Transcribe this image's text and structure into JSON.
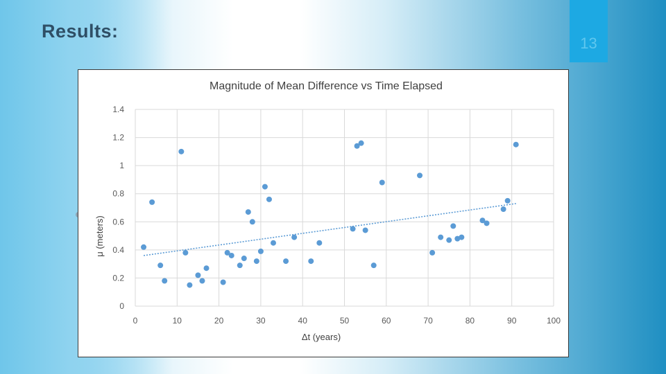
{
  "slide": {
    "title": "Results:",
    "page_number": "13"
  },
  "colors": {
    "marker": "#5b9bd5",
    "trendline": "#5b9bd5",
    "gridline": "#d9d9d9",
    "text": "#595959",
    "tab": "#1da9e3"
  },
  "chart_data": {
    "type": "scatter",
    "title": "Magnitude of Mean Difference vs Time Elapsed",
    "xlabel": "Δt (years)",
    "ylabel": "μ (meters)",
    "xlim": [
      0,
      100
    ],
    "ylim": [
      0,
      1.4
    ],
    "x_ticks": [
      0,
      10,
      20,
      30,
      40,
      50,
      60,
      70,
      80,
      90,
      100
    ],
    "y_ticks": [
      0,
      0.2,
      0.4,
      0.6,
      0.8,
      1,
      1.2,
      1.4
    ],
    "y_tick_labels": [
      "0",
      "0.2",
      "0.4",
      "0.6",
      "0.8",
      "1",
      "1.2",
      "1.4"
    ],
    "grid": true,
    "series": [
      {
        "name": "μ",
        "points": [
          [
            2,
            0.42
          ],
          [
            4,
            0.74
          ],
          [
            6,
            0.29
          ],
          [
            7,
            0.18
          ],
          [
            11,
            1.1
          ],
          [
            12,
            0.38
          ],
          [
            13,
            0.15
          ],
          [
            15,
            0.22
          ],
          [
            16,
            0.18
          ],
          [
            17,
            0.27
          ],
          [
            21,
            0.17
          ],
          [
            22,
            0.38
          ],
          [
            23,
            0.36
          ],
          [
            25,
            0.29
          ],
          [
            26,
            0.34
          ],
          [
            27,
            0.67
          ],
          [
            28,
            0.6
          ],
          [
            29,
            0.32
          ],
          [
            30,
            0.39
          ],
          [
            31,
            0.85
          ],
          [
            32,
            0.76
          ],
          [
            33,
            0.45
          ],
          [
            36,
            0.32
          ],
          [
            38,
            0.49
          ],
          [
            42,
            0.32
          ],
          [
            44,
            0.45
          ],
          [
            52,
            0.55
          ],
          [
            53,
            1.14
          ],
          [
            54,
            1.16
          ],
          [
            55,
            0.54
          ],
          [
            57,
            0.29
          ],
          [
            59,
            0.88
          ],
          [
            68,
            0.93
          ],
          [
            71,
            0.38
          ],
          [
            73,
            0.49
          ],
          [
            75,
            0.47
          ],
          [
            76,
            0.57
          ],
          [
            77,
            0.48
          ],
          [
            78,
            0.49
          ],
          [
            83,
            0.61
          ],
          [
            84,
            0.59
          ],
          [
            88,
            0.69
          ],
          [
            89,
            0.75
          ],
          [
            91,
            1.15
          ]
        ]
      }
    ],
    "trendline": {
      "type": "linear",
      "x": [
        2,
        91
      ],
      "y": [
        0.36,
        0.73
      ]
    }
  }
}
